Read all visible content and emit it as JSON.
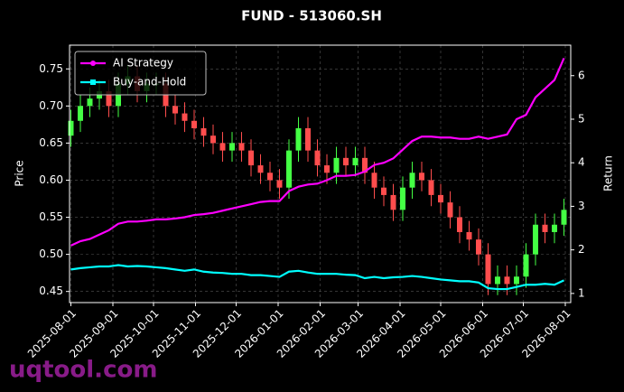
{
  "chart_data": {
    "type": "candlestick",
    "title": "FUND - 513060.SH",
    "x": [
      "2025-08-01",
      "2025-08-08",
      "2025-08-15",
      "2025-08-22",
      "2025-08-29",
      "2025-09-05",
      "2025-09-12",
      "2025-09-19",
      "2025-09-26",
      "2025-10-03",
      "2025-10-10",
      "2025-10-17",
      "2025-10-24",
      "2025-10-31",
      "2025-11-07",
      "2025-11-14",
      "2025-11-21",
      "2025-11-28",
      "2025-12-05",
      "2025-12-12",
      "2025-12-19",
      "2025-12-26",
      "2026-01-02",
      "2026-01-09",
      "2026-01-16",
      "2026-01-23",
      "2026-01-30",
      "2026-02-06",
      "2026-02-13",
      "2026-02-20",
      "2026-02-27",
      "2026-03-06",
      "2026-03-13",
      "2026-03-20",
      "2026-03-27",
      "2026-04-03",
      "2026-04-10",
      "2026-04-17",
      "2026-04-24",
      "2026-05-01",
      "2026-05-08",
      "2026-05-15",
      "2026-05-22",
      "2026-05-29",
      "2026-06-05",
      "2026-06-12",
      "2026-06-19",
      "2026-06-26",
      "2026-07-03",
      "2026-07-10",
      "2026-07-17",
      "2026-07-24",
      "2026-07-31"
    ],
    "open": [
      0.66,
      0.68,
      0.7,
      0.71,
      0.72,
      0.7,
      0.73,
      0.74,
      0.72,
      0.73,
      0.73,
      0.7,
      0.69,
      0.68,
      0.67,
      0.66,
      0.65,
      0.64,
      0.65,
      0.64,
      0.62,
      0.61,
      0.6,
      0.59,
      0.64,
      0.67,
      0.64,
      0.62,
      0.61,
      0.63,
      0.62,
      0.63,
      0.61,
      0.59,
      0.58,
      0.56,
      0.59,
      0.61,
      0.6,
      0.58,
      0.57,
      0.55,
      0.53,
      0.52,
      0.5,
      0.46,
      0.47,
      0.46,
      0.47,
      0.5,
      0.54,
      0.53,
      0.54
    ],
    "high": [
      0.695,
      0.715,
      0.725,
      0.735,
      0.735,
      0.745,
      0.755,
      0.755,
      0.745,
      0.745,
      0.745,
      0.715,
      0.705,
      0.695,
      0.685,
      0.675,
      0.665,
      0.665,
      0.665,
      0.655,
      0.635,
      0.625,
      0.615,
      0.655,
      0.685,
      0.685,
      0.655,
      0.635,
      0.645,
      0.645,
      0.645,
      0.645,
      0.625,
      0.605,
      0.595,
      0.605,
      0.625,
      0.625,
      0.615,
      0.595,
      0.585,
      0.565,
      0.545,
      0.535,
      0.515,
      0.485,
      0.485,
      0.485,
      0.515,
      0.555,
      0.555,
      0.555,
      0.575
    ],
    "low": [
      0.645,
      0.665,
      0.685,
      0.695,
      0.685,
      0.685,
      0.715,
      0.705,
      0.705,
      0.715,
      0.685,
      0.675,
      0.665,
      0.655,
      0.645,
      0.635,
      0.625,
      0.625,
      0.625,
      0.605,
      0.595,
      0.585,
      0.575,
      0.575,
      0.625,
      0.625,
      0.605,
      0.595,
      0.595,
      0.605,
      0.605,
      0.595,
      0.575,
      0.565,
      0.545,
      0.545,
      0.575,
      0.585,
      0.565,
      0.555,
      0.535,
      0.515,
      0.505,
      0.485,
      0.445,
      0.445,
      0.445,
      0.445,
      0.455,
      0.485,
      0.515,
      0.515,
      0.525
    ],
    "close": [
      0.68,
      0.7,
      0.71,
      0.72,
      0.7,
      0.73,
      0.74,
      0.72,
      0.73,
      0.73,
      0.7,
      0.69,
      0.68,
      0.67,
      0.66,
      0.65,
      0.64,
      0.65,
      0.64,
      0.62,
      0.61,
      0.6,
      0.59,
      0.64,
      0.67,
      0.64,
      0.62,
      0.61,
      0.63,
      0.62,
      0.63,
      0.61,
      0.59,
      0.58,
      0.56,
      0.59,
      0.61,
      0.6,
      0.58,
      0.57,
      0.55,
      0.53,
      0.52,
      0.5,
      0.46,
      0.47,
      0.46,
      0.47,
      0.5,
      0.54,
      0.53,
      0.54,
      0.56
    ],
    "up_color": "#44ff44",
    "down_color": "#ff4d4d",
    "series": [
      {
        "name": "AI Strategy",
        "color": "#ff00ff",
        "axis": "y2",
        "marker": "circle",
        "values": [
          2.1,
          2.2,
          2.25,
          2.35,
          2.45,
          2.6,
          2.65,
          2.65,
          2.67,
          2.7,
          2.7,
          2.72,
          2.75,
          2.8,
          2.82,
          2.85,
          2.9,
          2.95,
          3.0,
          3.05,
          3.1,
          3.12,
          3.12,
          3.35,
          3.45,
          3.5,
          3.52,
          3.6,
          3.7,
          3.7,
          3.72,
          3.8,
          3.95,
          4.0,
          4.1,
          4.3,
          4.5,
          4.6,
          4.6,
          4.58,
          4.58,
          4.55,
          4.55,
          4.6,
          4.55,
          4.6,
          4.65,
          5.0,
          5.1,
          5.5,
          5.7,
          5.9,
          6.4
        ]
      },
      {
        "name": "Buy-and-Hold",
        "color": "#00ffff",
        "axis": "y2",
        "marker": "square",
        "values": [
          1.55,
          1.58,
          1.6,
          1.62,
          1.62,
          1.65,
          1.62,
          1.63,
          1.62,
          1.6,
          1.58,
          1.55,
          1.52,
          1.55,
          1.5,
          1.48,
          1.47,
          1.45,
          1.45,
          1.42,
          1.42,
          1.4,
          1.38,
          1.5,
          1.52,
          1.48,
          1.45,
          1.45,
          1.45,
          1.43,
          1.42,
          1.35,
          1.38,
          1.35,
          1.37,
          1.38,
          1.4,
          1.38,
          1.35,
          1.32,
          1.3,
          1.28,
          1.28,
          1.25,
          1.12,
          1.1,
          1.1,
          1.15,
          1.2,
          1.2,
          1.22,
          1.2,
          1.3
        ]
      }
    ],
    "xlim": [
      "2025-07-31",
      "2026-08-05"
    ],
    "xticks": [
      "2025-08-01",
      "2025-09-01",
      "2025-10-01",
      "2025-11-01",
      "2025-12-01",
      "2026-01-01",
      "2026-02-01",
      "2026-03-01",
      "2026-04-01",
      "2026-05-01",
      "2026-06-01",
      "2026-07-01",
      "2026-08-01"
    ],
    "ylim": [
      0.435,
      0.782
    ],
    "yticks": [
      0.45,
      {
        "value": 0.5,
        "label": "0.50"
      },
      0.55,
      {
        "value": 0.6,
        "label": "0.60"
      },
      0.65,
      {
        "value": 0.7,
        "label": "0.70"
      },
      0.75
    ],
    "y2lim": [
      0.79,
      6.7
    ],
    "y2ticks": [
      1,
      2,
      3,
      4,
      5,
      6
    ],
    "ylabel": "Price",
    "y2label": "Return",
    "grid": true,
    "legend": "upper left"
  },
  "watermark": "uqtool.com"
}
